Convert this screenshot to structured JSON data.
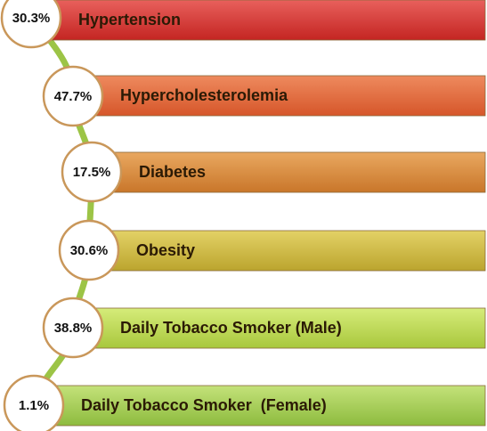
{
  "items": [
    {
      "value": "30.3%",
      "label": "Hypertension"
    },
    {
      "value": "47.7%",
      "label": "Hypercholesterolemia"
    },
    {
      "value": "17.5%",
      "label": "Diabetes"
    },
    {
      "value": "30.6%",
      "label": "Obesity"
    },
    {
      "value": "38.8%",
      "label": "Daily Tobacco Smoker (Male)"
    },
    {
      "value": "1.1%",
      "label": "Daily Tobacco Smoker  (Female)"
    }
  ]
}
